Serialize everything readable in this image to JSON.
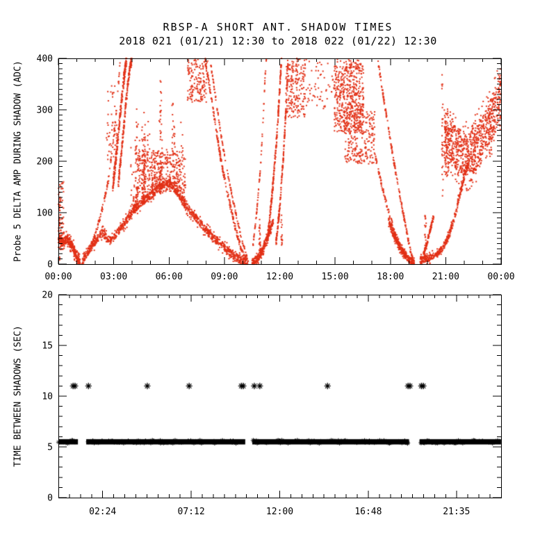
{
  "header": {
    "title": "RBSP-A SHORT ANT. SHADOW TIMES",
    "subtitle": "2018 021 (01/21) 12:30 to 2018 022 (01/22) 12:30"
  },
  "colors": {
    "background": "#ffffff",
    "frame": "#000000",
    "top_marker": "#e23016",
    "bottom_marker": "#000000",
    "text": "#000000"
  },
  "chart_data": [
    {
      "id": "top-panel",
      "type": "scatter",
      "marker": "dot",
      "ylabel": "Probe 5 DELTA AMP DURING SHADOW (ADC)",
      "xlim_hours": [
        0,
        24
      ],
      "ylim": [
        0,
        400
      ],
      "x_major_ticks": [
        {
          "h": 0,
          "label": "00:00"
        },
        {
          "h": 3,
          "label": "03:00"
        },
        {
          "h": 6,
          "label": "06:00"
        },
        {
          "h": 9,
          "label": "09:00"
        },
        {
          "h": 12,
          "label": "12:00"
        },
        {
          "h": 15,
          "label": "15:00"
        },
        {
          "h": 18,
          "label": "18:00"
        },
        {
          "h": 21,
          "label": "21:00"
        },
        {
          "h": 24,
          "label": "00:00"
        }
      ],
      "x_minor_step_hours": 1,
      "y_major_ticks": [
        {
          "v": 0,
          "label": "0"
        },
        {
          "v": 100,
          "label": "100"
        },
        {
          "v": 200,
          "label": "200"
        },
        {
          "v": 300,
          "label": "300"
        },
        {
          "v": 400,
          "label": "400"
        }
      ],
      "y_minor_step": 10,
      "features": {
        "bands": [
          {
            "name": "v1-left",
            "path": [
              [
                0,
                48
              ],
              [
                0.25,
                42
              ],
              [
                0.5,
                50
              ],
              [
                0.75,
                36
              ],
              [
                0.95,
                18
              ],
              [
                1.08,
                6
              ],
              [
                1.18,
                1
              ]
            ],
            "thick": 16,
            "halo": 36,
            "n": 300,
            "halo_n": 80
          },
          {
            "name": "v1-to-v2",
            "path": [
              [
                1.28,
                3
              ],
              [
                1.5,
                18
              ],
              [
                1.75,
                32
              ],
              [
                2.0,
                44
              ],
              [
                2.2,
                54
              ],
              [
                2.45,
                64
              ],
              [
                2.6,
                50
              ],
              [
                2.8,
                46
              ],
              [
                3.0,
                52
              ],
              [
                3.3,
                66
              ],
              [
                3.6,
                80
              ],
              [
                3.9,
                96
              ],
              [
                4.2,
                110
              ],
              [
                4.5,
                120
              ],
              [
                4.8,
                128
              ],
              [
                5.1,
                138
              ],
              [
                5.4,
                148
              ],
              [
                5.7,
                155
              ],
              [
                6.0,
                158
              ],
              [
                6.3,
                150
              ],
              [
                6.6,
                132
              ],
              [
                6.9,
                115
              ],
              [
                7.2,
                100
              ],
              [
                7.5,
                88
              ],
              [
                7.8,
                74
              ],
              [
                8.1,
                62
              ],
              [
                8.4,
                52
              ],
              [
                8.7,
                42
              ],
              [
                9.0,
                32
              ],
              [
                9.3,
                22
              ],
              [
                9.6,
                14
              ],
              [
                9.9,
                7
              ],
              [
                10.15,
                3
              ],
              [
                10.3,
                1
              ]
            ],
            "thick": 14,
            "halo": 30,
            "n": 950,
            "halo_n": 250
          },
          {
            "name": "v2-rise",
            "path": [
              [
                10.5,
                3
              ],
              [
                10.7,
                8
              ],
              [
                10.9,
                15
              ],
              [
                11.1,
                30
              ],
              [
                11.3,
                48
              ],
              [
                11.5,
                68
              ],
              [
                11.65,
                85
              ]
            ],
            "thick": 13,
            "halo": 26,
            "n": 210,
            "halo_n": 55
          },
          {
            "name": "v3-fall",
            "path": [
              [
                17.9,
                85
              ],
              [
                18.2,
                55
              ],
              [
                18.5,
                33
              ],
              [
                18.8,
                17
              ],
              [
                19.05,
                7
              ],
              [
                19.3,
                2
              ]
            ],
            "thick": 12,
            "halo": 24,
            "n": 250,
            "halo_n": 60
          },
          {
            "name": "v3-rise",
            "path": [
              [
                19.6,
                8
              ],
              [
                19.9,
                10
              ],
              [
                20.2,
                13
              ],
              [
                20.5,
                19
              ],
              [
                20.8,
                30
              ],
              [
                21.1,
                50
              ],
              [
                21.4,
                80
              ],
              [
                21.7,
                125
              ],
              [
                22.0,
                170
              ],
              [
                22.3,
                205
              ]
            ],
            "thick": 12,
            "halo": 24,
            "n": 330,
            "halo_n": 80
          },
          {
            "name": "v3-hook",
            "path": [
              [
                19.78,
                18
              ],
              [
                19.95,
                35
              ],
              [
                20.1,
                58
              ],
              [
                20.25,
                80
              ],
              [
                20.35,
                92
              ]
            ],
            "thick": 8,
            "halo": 14,
            "n": 80,
            "halo_n": 20
          },
          {
            "name": "night-blob",
            "path": [
              [
                20.95,
                238
              ],
              [
                21.3,
                233
              ],
              [
                21.7,
                222
              ],
              [
                22.1,
                212
              ],
              [
                22.5,
                218
              ],
              [
                22.9,
                238
              ],
              [
                23.3,
                268
              ],
              [
                23.7,
                300
              ],
              [
                24.0,
                330
              ]
            ],
            "thick": 85,
            "halo": 140,
            "n": 650,
            "halo_n": 230
          }
        ],
        "streaks": [
          {
            "path": [
              [
                1.8,
                35
              ],
              [
                2.1,
                70
              ],
              [
                2.4,
                110
              ],
              [
                2.7,
                160
              ],
              [
                2.9,
                215
              ],
              [
                3.1,
                280
              ],
              [
                3.25,
                345
              ],
              [
                3.35,
                395
              ]
            ],
            "thick": 10,
            "n": 110
          },
          {
            "path": [
              [
                2.95,
                150
              ],
              [
                3.15,
                215
              ],
              [
                3.35,
                290
              ],
              [
                3.55,
                360
              ],
              [
                3.7,
                400
              ]
            ],
            "thick": 24,
            "n": 240
          },
          {
            "path": [
              [
                3.25,
                155
              ],
              [
                3.45,
                230
              ],
              [
                3.65,
                310
              ],
              [
                3.85,
                375
              ],
              [
                3.98,
                400
              ]
            ],
            "thick": 20,
            "n": 200
          },
          {
            "path": [
              [
                7.95,
                395
              ],
              [
                8.2,
                345
              ],
              [
                8.5,
                275
              ],
              [
                8.8,
                205
              ],
              [
                9.1,
                150
              ],
              [
                9.4,
                100
              ],
              [
                9.7,
                55
              ],
              [
                10.0,
                20
              ],
              [
                10.2,
                5
              ]
            ],
            "thick": 12,
            "n": 230
          },
          {
            "path": [
              [
                8.25,
                390
              ],
              [
                8.5,
                330
              ],
              [
                8.8,
                255
              ],
              [
                9.1,
                190
              ],
              [
                9.4,
                135
              ],
              [
                9.7,
                85
              ],
              [
                10.0,
                40
              ],
              [
                10.25,
                10
              ]
            ],
            "thick": 8,
            "n": 120
          },
          {
            "path": [
              [
                10.55,
                35
              ],
              [
                10.75,
                100
              ],
              [
                10.95,
                185
              ],
              [
                11.1,
                280
              ],
              [
                11.2,
                360
              ],
              [
                11.28,
                400
              ]
            ],
            "thick": 6,
            "n": 70
          },
          {
            "path": [
              [
                11.35,
                55
              ],
              [
                11.6,
                140
              ],
              [
                11.85,
                250
              ],
              [
                12.0,
                340
              ],
              [
                12.1,
                400
              ]
            ],
            "thick": 18,
            "n": 230
          },
          {
            "path": [
              [
                11.8,
                40
              ],
              [
                12.0,
                110
              ],
              [
                12.2,
                210
              ],
              [
                12.35,
                310
              ],
              [
                12.45,
                385
              ]
            ],
            "thick": 16,
            "n": 190
          },
          {
            "path": [
              [
                17.3,
                400
              ],
              [
                17.6,
                330
              ],
              [
                17.9,
                262
              ],
              [
                18.2,
                196
              ],
              [
                18.5,
                135
              ],
              [
                18.8,
                78
              ],
              [
                19.05,
                32
              ],
              [
                19.2,
                10
              ]
            ],
            "thick": 10,
            "n": 180
          },
          {
            "path": [
              [
                17.15,
                215
              ],
              [
                17.5,
                158
              ],
              [
                17.85,
                108
              ],
              [
                18.2,
                66
              ],
              [
                18.55,
                34
              ],
              [
                18.85,
                14
              ]
            ],
            "thick": 9,
            "n": 120
          }
        ],
        "clouds": [
          {
            "t0": 0.0,
            "t1": 0.28,
            "y0": 55,
            "y1": 160,
            "n": 45
          },
          {
            "t0": 7.0,
            "t1": 8.1,
            "y0": 315,
            "y1": 400,
            "n": 150
          },
          {
            "t0": 12.3,
            "t1": 13.4,
            "y0": 285,
            "y1": 400,
            "n": 200
          },
          {
            "t0": 13.4,
            "t1": 14.95,
            "y0": 300,
            "y1": 400,
            "n": 55
          },
          {
            "t0": 14.95,
            "t1": 16.55,
            "y0": 255,
            "y1": 385,
            "n": 480
          },
          {
            "t0": 15.5,
            "t1": 17.15,
            "y0": 195,
            "y1": 300,
            "n": 250
          },
          {
            "t0": 15.0,
            "t1": 16.4,
            "y0": 380,
            "y1": 400,
            "n": 40
          },
          {
            "t0": 4.3,
            "t1": 6.6,
            "y0": 150,
            "y1": 220,
            "n": 210
          },
          {
            "t0": 20.9,
            "t1": 21.15,
            "y0": 170,
            "y1": 300,
            "n": 60
          },
          {
            "t0": 2.6,
            "t1": 3.2,
            "y0": 200,
            "y1": 355,
            "n": 45
          }
        ],
        "spikes": [
          {
            "t": 10.92,
            "y0": 12,
            "y1": 88,
            "n": 24
          },
          {
            "t": 12.1,
            "y0": 35,
            "y1": 95,
            "n": 16
          },
          {
            "t": 19.9,
            "y0": 22,
            "y1": 95,
            "n": 20
          },
          {
            "t": 20.82,
            "y0": 120,
            "y1": 370,
            "n": 28
          },
          {
            "t": 5.55,
            "y0": 165,
            "y1": 360,
            "n": 22
          },
          {
            "t": 6.2,
            "y0": 165,
            "y1": 330,
            "n": 18
          },
          {
            "t": 0.05,
            "y0": 0,
            "y1": 140,
            "n": 25
          }
        ],
        "columns": {
          "t0": 3.95,
          "t1": 7.05,
          "n_cols": 34,
          "top_min": 185,
          "top_max": 305,
          "col_pts": 13,
          "base_path": [
            [
              3.95,
              105
            ],
            [
              4.5,
              125
            ],
            [
              5.1,
              140
            ],
            [
              5.7,
              155
            ],
            [
              6.3,
              150
            ],
            [
              7.05,
              110
            ]
          ]
        }
      }
    },
    {
      "id": "bottom-panel",
      "type": "scatter",
      "marker": "asterisk",
      "ylabel": "TIME BETWEEN SHADOWS (SEC)",
      "xlim_hours": [
        0,
        24
      ],
      "ylim": [
        0,
        20
      ],
      "x_major_ticks": [
        {
          "h": 2.4,
          "label": "02:24"
        },
        {
          "h": 7.2,
          "label": "07:12"
        },
        {
          "h": 12.0,
          "label": "12:00"
        },
        {
          "h": 16.8,
          "label": "16:48"
        },
        {
          "h": 21.58,
          "label": "21:35"
        }
      ],
      "x_minor_step_hours": 0.6,
      "y_major_ticks": [
        {
          "v": 0,
          "label": "0"
        },
        {
          "v": 5,
          "label": "5"
        },
        {
          "v": 10,
          "label": "10"
        },
        {
          "v": 15,
          "label": "15"
        },
        {
          "v": 20,
          "label": "20"
        }
      ],
      "y_minor_step": 1,
      "band": {
        "value_sec": 5.5,
        "thickness_sec": 0.52,
        "segments_hours": [
          [
            0,
            1.06
          ],
          [
            1.51,
            10.13
          ],
          [
            10.51,
            19.01
          ],
          [
            19.58,
            24
          ]
        ]
      },
      "outliers": {
        "value_sec": 11.0,
        "times_hours": [
          0.8,
          0.9,
          1.63,
          4.82,
          7.09,
          9.92,
          10.02,
          10.62,
          10.92,
          14.59,
          18.96,
          19.06,
          19.68,
          19.78
        ]
      }
    }
  ]
}
